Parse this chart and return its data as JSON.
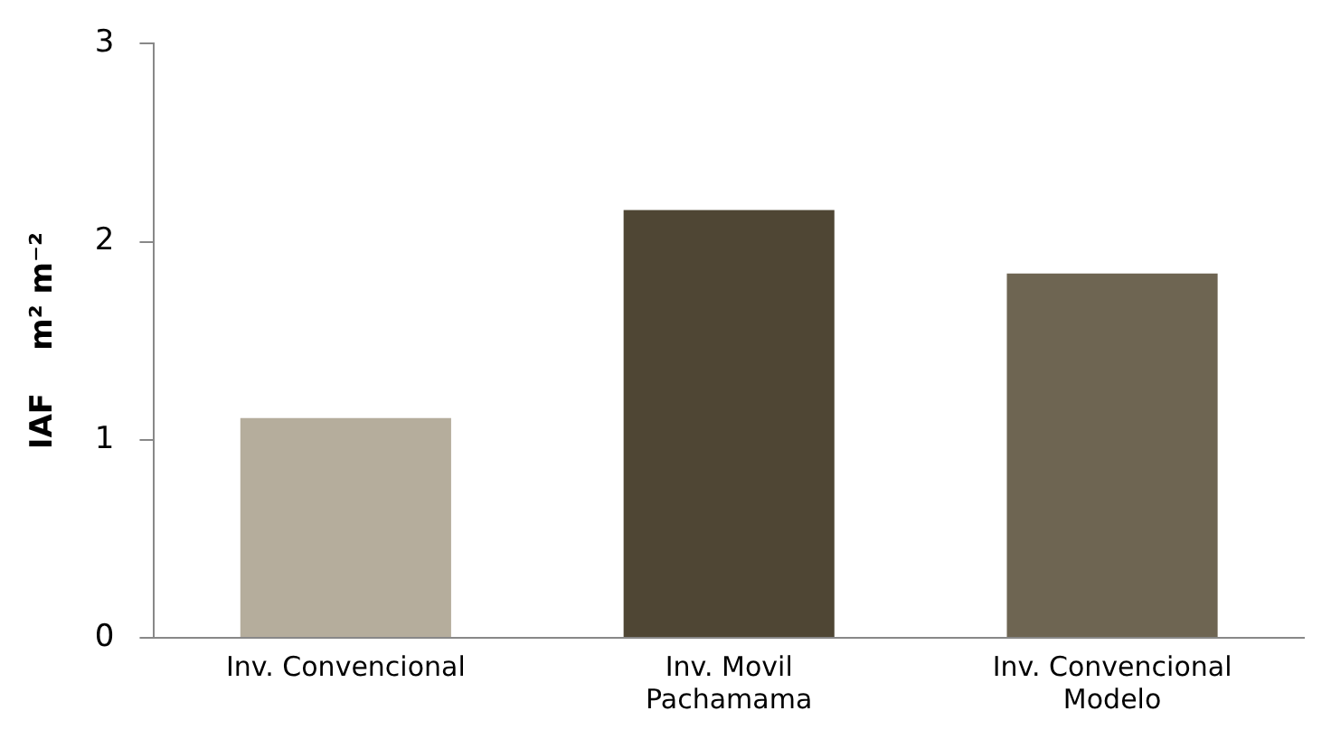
{
  "chart_data": {
    "type": "bar",
    "ylabel": "IAF    m² m⁻²",
    "categories": [
      "Inv. Convencional",
      "Inv. Movil\nPachamama",
      "Inv. Convencional\nModelo"
    ],
    "values": [
      1.11,
      2.16,
      1.84
    ],
    "colors": [
      "#b5ad9c",
      "#4f4634",
      "#6e6552"
    ],
    "ylim": [
      0,
      3
    ],
    "yticks": [
      0,
      1,
      2,
      3
    ],
    "grid": false,
    "legend": false
  }
}
